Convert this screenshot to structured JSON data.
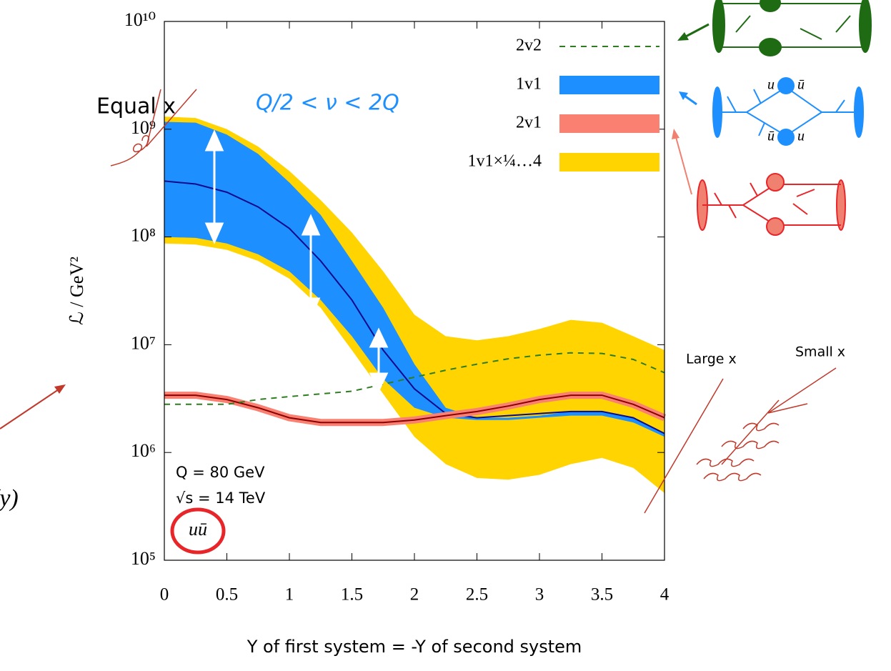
{
  "chart_data": {
    "type": "line",
    "x": [
      0,
      0.25,
      0.5,
      0.75,
      1,
      1.25,
      1.5,
      1.75,
      2,
      2.25,
      2.5,
      2.75,
      3,
      3.25,
      3.5,
      3.75,
      4
    ],
    "series": [
      {
        "name": "2v2",
        "color": "#2e7d1e",
        "dash": true,
        "values": [
          2800000.0,
          2800000.0,
          2800000.0,
          3100000.0,
          3300000.0,
          3500000.0,
          3700000.0,
          4300000.0,
          5000000.0,
          5800000.0,
          6600000.0,
          7400000.0,
          8000000.0,
          8400000.0,
          8300000.0,
          7300000.0,
          5500000.0
        ]
      },
      {
        "name": "1v1",
        "color": "#1e8fff",
        "line_color": "#0a0a8c",
        "values": [
          330000000.0,
          310000000.0,
          260000000.0,
          190000000.0,
          120000000.0,
          60000000.0,
          26000000.0,
          8900000.0,
          3900000.0,
          2300000.0,
          2100000.0,
          2200000.0,
          2300000.0,
          2400000.0,
          2400000.0,
          2100000.0,
          1500000.0
        ],
        "upper": [
          1170000000.0,
          1150000000.0,
          890000000.0,
          590000000.0,
          320000000.0,
          160000000.0,
          60000000.0,
          22000000.0,
          6600000.0,
          2600000.0,
          2100000.0,
          2100000.0,
          2200000.0,
          2400000.0,
          2400000.0,
          2100000.0,
          1500000.0
        ],
        "lower": [
          100000000.0,
          98000000.0,
          87000000.0,
          69000000.0,
          48000000.0,
          26000000.0,
          12000000.0,
          4800000.0,
          2600000.0,
          2100000.0,
          2000000.0,
          2000000.0,
          2100000.0,
          2200000.0,
          2200000.0,
          1900000.0,
          1400000.0
        ]
      },
      {
        "name": "2v1",
        "color": "#fa8072",
        "line_color": "#8b0000",
        "values": [
          3400000.0,
          3400000.0,
          3100000.0,
          2600000.0,
          2100000.0,
          1900000.0,
          1900000.0,
          1900000.0,
          2000000.0,
          2200000.0,
          2400000.0,
          2700000.0,
          3100000.0,
          3400000.0,
          3400000.0,
          2800000.0,
          2100000.0
        ]
      },
      {
        "name": "1v1×¼…4",
        "color": "#ffd400",
        "upper": [
          1310000000.0,
          1270000000.0,
          1000000000.0,
          690000000.0,
          410000000.0,
          220000000.0,
          110000000.0,
          48000000.0,
          19000000.0,
          12000000.0,
          11000000.0,
          12000000.0,
          14000000.0,
          17000000.0,
          16000000.0,
          12000000.0,
          8900000.0
        ],
        "lower": [
          87000000.0,
          85000000.0,
          76000000.0,
          60000000.0,
          41000000.0,
          22000000.0,
          8900000.0,
          3500000.0,
          1400000.0,
          780000.0,
          580000.0,
          560000.0,
          620000.0,
          780000.0,
          890000.0,
          720000.0,
          420000.0
        ]
      }
    ],
    "log_y": true,
    "legend": "upper right",
    "xlim": [
      0,
      4
    ],
    "xticks": [
      0,
      0.5,
      1,
      1.5,
      2,
      2.5,
      3,
      3.5,
      4
    ],
    "ylim": [
      100000,
      10000000000
    ],
    "yticks": [
      {
        "value": 100000,
        "label": "10⁵"
      },
      {
        "value": 1000000,
        "label": "10⁶"
      },
      {
        "value": 10000000,
        "label": "10⁷"
      },
      {
        "value": 100000000,
        "label": "10⁸"
      },
      {
        "value": 1000000000,
        "label": "10⁹"
      },
      {
        "value": 10000000000,
        "label": "10¹⁰"
      }
    ],
    "x_label": "Y of first system = -Y of second system",
    "y_label": "ℒ / GeV²",
    "annotations": {
      "equal_x": "Equal x",
      "scale_range": "Q/2 < ν < 2Q",
      "q_value": "Q = 80 GeV",
      "sqrt_s": "√s = 14 TeV",
      "channel": "uū",
      "large_x": "Large x",
      "small_x": "Small x",
      "cut_text": "(y)",
      "u1": "u",
      "ubar1": "ū",
      "u2": "u",
      "ubar2": "ū"
    }
  }
}
